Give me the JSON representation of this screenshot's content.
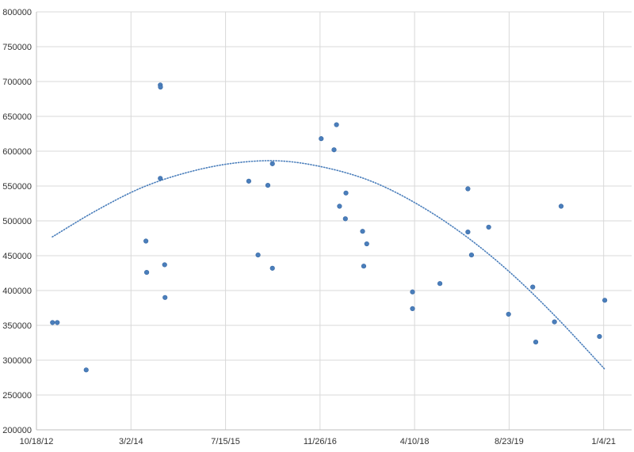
{
  "chart_data": {
    "type": "scatter",
    "title": "",
    "xlabel": "",
    "ylabel": "",
    "x_axis_type": "date",
    "x_range": [
      "2012-10-18",
      "2021-06-01"
    ],
    "x_ticks": [
      "2012-10-18",
      "2014-03-02",
      "2015-07-15",
      "2016-11-26",
      "2018-04-10",
      "2019-08-23",
      "2021-01-04"
    ],
    "x_tick_labels": [
      "10/18/12",
      "3/2/14",
      "7/15/15",
      "11/26/16",
      "4/10/18",
      "8/23/19",
      "1/4/21"
    ],
    "ylim": [
      200000,
      800000
    ],
    "y_ticks": [
      200000,
      250000,
      300000,
      350000,
      400000,
      450000,
      500000,
      550000,
      600000,
      650000,
      700000,
      750000,
      800000
    ],
    "y_tick_labels": [
      "200000",
      "250000",
      "300000",
      "350000",
      "400000",
      "450000",
      "500000",
      "550000",
      "600000",
      "650000",
      "700000",
      "750000",
      "800000"
    ],
    "grid": true,
    "marker_color": "#4a7ebb",
    "trendline": {
      "type": "polynomial",
      "style": "dotted",
      "color": "#4a7ebb",
      "points": [
        {
          "x": "2013-01-10",
          "y": 477000
        },
        {
          "x": "2013-09-01",
          "y": 515000
        },
        {
          "x": "2014-05-01",
          "y": 548000
        },
        {
          "x": "2015-01-01",
          "y": 570000
        },
        {
          "x": "2015-09-01",
          "y": 583000
        },
        {
          "x": "2016-05-01",
          "y": 586000
        },
        {
          "x": "2017-01-01",
          "y": 576000
        },
        {
          "x": "2017-09-01",
          "y": 556000
        },
        {
          "x": "2018-05-01",
          "y": 523000
        },
        {
          "x": "2019-01-01",
          "y": 479000
        },
        {
          "x": "2019-09-01",
          "y": 425000
        },
        {
          "x": "2020-05-01",
          "y": 361000
        },
        {
          "x": "2021-01-10",
          "y": 287000
        }
      ]
    },
    "points": [
      {
        "x": "2013-01-11",
        "y": 354000
      },
      {
        "x": "2013-02-05",
        "y": 354000
      },
      {
        "x": "2013-07-08",
        "y": 286000
      },
      {
        "x": "2014-05-20",
        "y": 471000
      },
      {
        "x": "2014-05-24",
        "y": 426000
      },
      {
        "x": "2014-08-04",
        "y": 695000
      },
      {
        "x": "2014-08-05",
        "y": 692000
      },
      {
        "x": "2014-08-04",
        "y": 561000
      },
      {
        "x": "2014-08-27",
        "y": 437000
      },
      {
        "x": "2014-08-29",
        "y": 390000
      },
      {
        "x": "2015-11-15",
        "y": 557000
      },
      {
        "x": "2016-01-03",
        "y": 451000
      },
      {
        "x": "2016-02-24",
        "y": 551000
      },
      {
        "x": "2016-03-19",
        "y": 582000
      },
      {
        "x": "2016-03-19",
        "y": 432000
      },
      {
        "x": "2016-12-02",
        "y": 618000
      },
      {
        "x": "2017-02-08",
        "y": 602000
      },
      {
        "x": "2017-02-21",
        "y": 638000
      },
      {
        "x": "2017-03-09",
        "y": 521000
      },
      {
        "x": "2017-04-12",
        "y": 540000
      },
      {
        "x": "2017-04-09",
        "y": 503000
      },
      {
        "x": "2017-07-09",
        "y": 485000
      },
      {
        "x": "2017-07-15",
        "y": 435000
      },
      {
        "x": "2017-07-31",
        "y": 467000
      },
      {
        "x": "2018-03-30",
        "y": 398000
      },
      {
        "x": "2018-03-30",
        "y": 374000
      },
      {
        "x": "2018-08-22",
        "y": 410000
      },
      {
        "x": "2019-01-17",
        "y": 546000
      },
      {
        "x": "2019-01-17",
        "y": 484000
      },
      {
        "x": "2019-02-05",
        "y": 451000
      },
      {
        "x": "2019-05-07",
        "y": 491000
      },
      {
        "x": "2019-08-20",
        "y": 366000
      },
      {
        "x": "2019-12-26",
        "y": 405000
      },
      {
        "x": "2020-01-11",
        "y": 326000
      },
      {
        "x": "2020-04-19",
        "y": 355000
      },
      {
        "x": "2020-05-24",
        "y": 521000
      },
      {
        "x": "2020-12-13",
        "y": 334000
      },
      {
        "x": "2021-01-10",
        "y": 386000
      }
    ]
  }
}
